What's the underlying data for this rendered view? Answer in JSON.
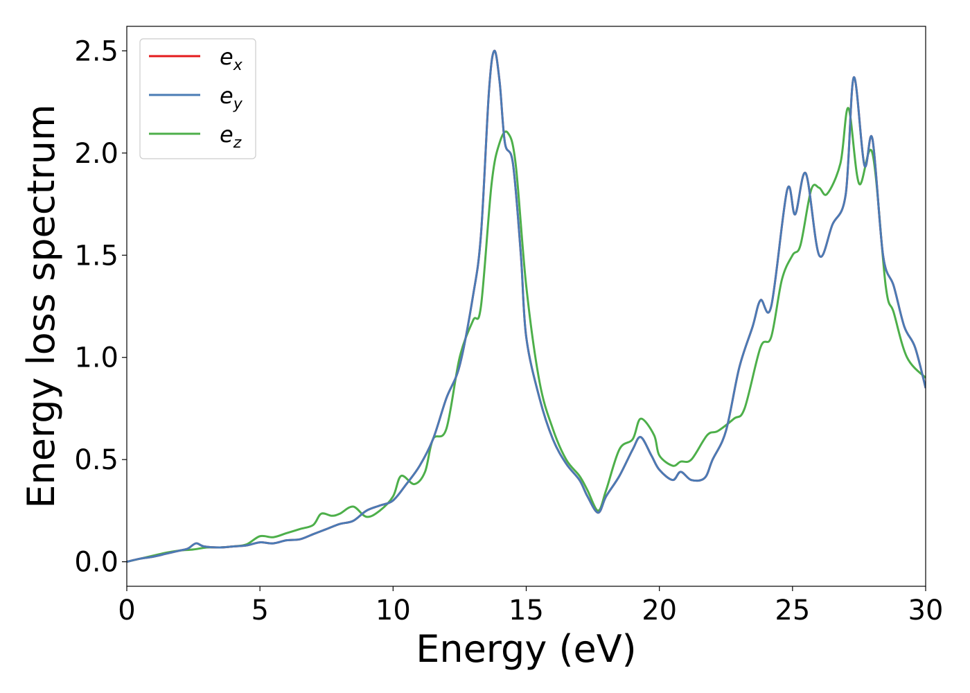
{
  "chart_data": {
    "type": "line",
    "title": "",
    "xlabel": "Energy (eV)",
    "ylabel": "Energy loss spectrum",
    "xlim": [
      0,
      30
    ],
    "ylim": [
      -0.12,
      2.62
    ],
    "xticks": [
      0,
      5,
      10,
      15,
      20,
      25,
      30
    ],
    "xtick_labels": [
      "0",
      "5",
      "10",
      "15",
      "20",
      "25",
      "30"
    ],
    "yticks": [
      0.0,
      0.5,
      1.0,
      1.5,
      2.0,
      2.5
    ],
    "ytick_labels": [
      "0.0",
      "0.5",
      "1.0",
      "1.5",
      "2.0",
      "2.5"
    ],
    "grid": false,
    "legend_position": "top-left",
    "series": [
      {
        "name": "e_x",
        "label_base": "e",
        "label_sub": "x",
        "color": "#e41a1c",
        "points": [
          [
            0,
            0
          ],
          [
            0.5,
            0.015
          ],
          [
            1,
            0.025
          ],
          [
            1.5,
            0.04
          ],
          [
            2,
            0.055
          ],
          [
            2.3,
            0.065
          ],
          [
            2.6,
            0.09
          ],
          [
            2.9,
            0.075
          ],
          [
            3.5,
            0.07
          ],
          [
            4,
            0.075
          ],
          [
            4.5,
            0.08
          ],
          [
            5,
            0.095
          ],
          [
            5.5,
            0.09
          ],
          [
            6,
            0.105
          ],
          [
            6.5,
            0.11
          ],
          [
            7,
            0.135
          ],
          [
            7.5,
            0.16
          ],
          [
            8,
            0.185
          ],
          [
            8.5,
            0.2
          ],
          [
            9,
            0.25
          ],
          [
            9.5,
            0.275
          ],
          [
            10,
            0.3
          ],
          [
            10.5,
            0.38
          ],
          [
            11,
            0.47
          ],
          [
            11.5,
            0.6
          ],
          [
            12,
            0.8
          ],
          [
            12.5,
            0.96
          ],
          [
            13,
            1.3
          ],
          [
            13.3,
            1.6
          ],
          [
            13.6,
            2.3
          ],
          [
            13.8,
            2.5
          ],
          [
            14,
            2.35
          ],
          [
            14.2,
            2.05
          ],
          [
            14.5,
            1.95
          ],
          [
            14.8,
            1.5
          ],
          [
            15,
            1.1
          ],
          [
            15.5,
            0.8
          ],
          [
            16,
            0.6
          ],
          [
            16.5,
            0.48
          ],
          [
            17,
            0.4
          ],
          [
            17.3,
            0.32
          ],
          [
            17.7,
            0.24
          ],
          [
            18,
            0.32
          ],
          [
            18.5,
            0.42
          ],
          [
            19,
            0.55
          ],
          [
            19.3,
            0.61
          ],
          [
            19.7,
            0.52
          ],
          [
            20,
            0.45
          ],
          [
            20.5,
            0.4
          ],
          [
            20.8,
            0.44
          ],
          [
            21.2,
            0.4
          ],
          [
            21.7,
            0.41
          ],
          [
            22,
            0.5
          ],
          [
            22.5,
            0.64
          ],
          [
            23,
            0.95
          ],
          [
            23.5,
            1.15
          ],
          [
            23.8,
            1.28
          ],
          [
            24.2,
            1.25
          ],
          [
            24.8,
            1.82
          ],
          [
            25.1,
            1.7
          ],
          [
            25.5,
            1.9
          ],
          [
            26,
            1.5
          ],
          [
            26.5,
            1.65
          ],
          [
            27,
            1.8
          ],
          [
            27.3,
            2.37
          ],
          [
            27.7,
            1.94
          ],
          [
            28,
            2.07
          ],
          [
            28.4,
            1.5
          ],
          [
            28.8,
            1.35
          ],
          [
            29.2,
            1.15
          ],
          [
            29.6,
            1.05
          ],
          [
            30,
            0.85
          ]
        ]
      },
      {
        "name": "e_y",
        "label_base": "e",
        "label_sub": "y",
        "color": "#4a7bb5",
        "points": [
          [
            0,
            0
          ],
          [
            0.5,
            0.015
          ],
          [
            1,
            0.025
          ],
          [
            1.5,
            0.04
          ],
          [
            2,
            0.055
          ],
          [
            2.3,
            0.065
          ],
          [
            2.6,
            0.09
          ],
          [
            2.9,
            0.075
          ],
          [
            3.5,
            0.07
          ],
          [
            4,
            0.075
          ],
          [
            4.5,
            0.08
          ],
          [
            5,
            0.095
          ],
          [
            5.5,
            0.09
          ],
          [
            6,
            0.105
          ],
          [
            6.5,
            0.11
          ],
          [
            7,
            0.135
          ],
          [
            7.5,
            0.16
          ],
          [
            8,
            0.185
          ],
          [
            8.5,
            0.2
          ],
          [
            9,
            0.25
          ],
          [
            9.5,
            0.275
          ],
          [
            10,
            0.3
          ],
          [
            10.5,
            0.38
          ],
          [
            11,
            0.47
          ],
          [
            11.5,
            0.6
          ],
          [
            12,
            0.8
          ],
          [
            12.5,
            0.96
          ],
          [
            13,
            1.3
          ],
          [
            13.3,
            1.6
          ],
          [
            13.6,
            2.3
          ],
          [
            13.8,
            2.5
          ],
          [
            14,
            2.35
          ],
          [
            14.2,
            2.05
          ],
          [
            14.5,
            1.95
          ],
          [
            14.8,
            1.5
          ],
          [
            15,
            1.1
          ],
          [
            15.5,
            0.8
          ],
          [
            16,
            0.6
          ],
          [
            16.5,
            0.48
          ],
          [
            17,
            0.4
          ],
          [
            17.3,
            0.32
          ],
          [
            17.7,
            0.24
          ],
          [
            18,
            0.32
          ],
          [
            18.5,
            0.42
          ],
          [
            19,
            0.55
          ],
          [
            19.3,
            0.61
          ],
          [
            19.7,
            0.52
          ],
          [
            20,
            0.45
          ],
          [
            20.5,
            0.4
          ],
          [
            20.8,
            0.44
          ],
          [
            21.2,
            0.4
          ],
          [
            21.7,
            0.41
          ],
          [
            22,
            0.5
          ],
          [
            22.5,
            0.64
          ],
          [
            23,
            0.95
          ],
          [
            23.5,
            1.15
          ],
          [
            23.8,
            1.28
          ],
          [
            24.2,
            1.25
          ],
          [
            24.8,
            1.82
          ],
          [
            25.1,
            1.7
          ],
          [
            25.5,
            1.9
          ],
          [
            26,
            1.5
          ],
          [
            26.5,
            1.65
          ],
          [
            27,
            1.8
          ],
          [
            27.3,
            2.37
          ],
          [
            27.7,
            1.94
          ],
          [
            28,
            2.07
          ],
          [
            28.4,
            1.5
          ],
          [
            28.8,
            1.35
          ],
          [
            29.2,
            1.15
          ],
          [
            29.6,
            1.05
          ],
          [
            30,
            0.85
          ]
        ]
      },
      {
        "name": "e_z",
        "label_base": "e",
        "label_sub": "z",
        "color": "#4daf4a",
        "points": [
          [
            0,
            0
          ],
          [
            0.5,
            0.015
          ],
          [
            1,
            0.03
          ],
          [
            1.5,
            0.045
          ],
          [
            2,
            0.055
          ],
          [
            2.5,
            0.06
          ],
          [
            3,
            0.07
          ],
          [
            3.5,
            0.07
          ],
          [
            4,
            0.075
          ],
          [
            4.5,
            0.085
          ],
          [
            5,
            0.125
          ],
          [
            5.5,
            0.12
          ],
          [
            6,
            0.14
          ],
          [
            6.5,
            0.16
          ],
          [
            7,
            0.18
          ],
          [
            7.3,
            0.235
          ],
          [
            7.7,
            0.225
          ],
          [
            8,
            0.235
          ],
          [
            8.5,
            0.27
          ],
          [
            9,
            0.22
          ],
          [
            9.5,
            0.25
          ],
          [
            10,
            0.32
          ],
          [
            10.3,
            0.42
          ],
          [
            10.8,
            0.38
          ],
          [
            11.2,
            0.44
          ],
          [
            11.5,
            0.6
          ],
          [
            12,
            0.65
          ],
          [
            12.5,
            1.0
          ],
          [
            13,
            1.18
          ],
          [
            13.3,
            1.25
          ],
          [
            13.7,
            1.85
          ],
          [
            14,
            2.05
          ],
          [
            14.3,
            2.1
          ],
          [
            14.6,
            1.95
          ],
          [
            15,
            1.35
          ],
          [
            15.5,
            0.88
          ],
          [
            16,
            0.65
          ],
          [
            16.5,
            0.5
          ],
          [
            17,
            0.42
          ],
          [
            17.3,
            0.35
          ],
          [
            17.7,
            0.25
          ],
          [
            18,
            0.35
          ],
          [
            18.5,
            0.55
          ],
          [
            19,
            0.6
          ],
          [
            19.3,
            0.7
          ],
          [
            19.8,
            0.62
          ],
          [
            20,
            0.52
          ],
          [
            20.5,
            0.47
          ],
          [
            20.8,
            0.49
          ],
          [
            21.2,
            0.5
          ],
          [
            21.8,
            0.62
          ],
          [
            22.2,
            0.64
          ],
          [
            22.8,
            0.7
          ],
          [
            23.2,
            0.75
          ],
          [
            23.8,
            1.05
          ],
          [
            24.2,
            1.1
          ],
          [
            24.6,
            1.38
          ],
          [
            25,
            1.5
          ],
          [
            25.3,
            1.55
          ],
          [
            25.7,
            1.82
          ],
          [
            26,
            1.83
          ],
          [
            26.3,
            1.8
          ],
          [
            26.8,
            1.95
          ],
          [
            27.1,
            2.22
          ],
          [
            27.5,
            1.85
          ],
          [
            28,
            2.0
          ],
          [
            28.5,
            1.35
          ],
          [
            28.8,
            1.22
          ],
          [
            29.3,
            1.0
          ],
          [
            30,
            0.9
          ]
        ]
      }
    ]
  }
}
